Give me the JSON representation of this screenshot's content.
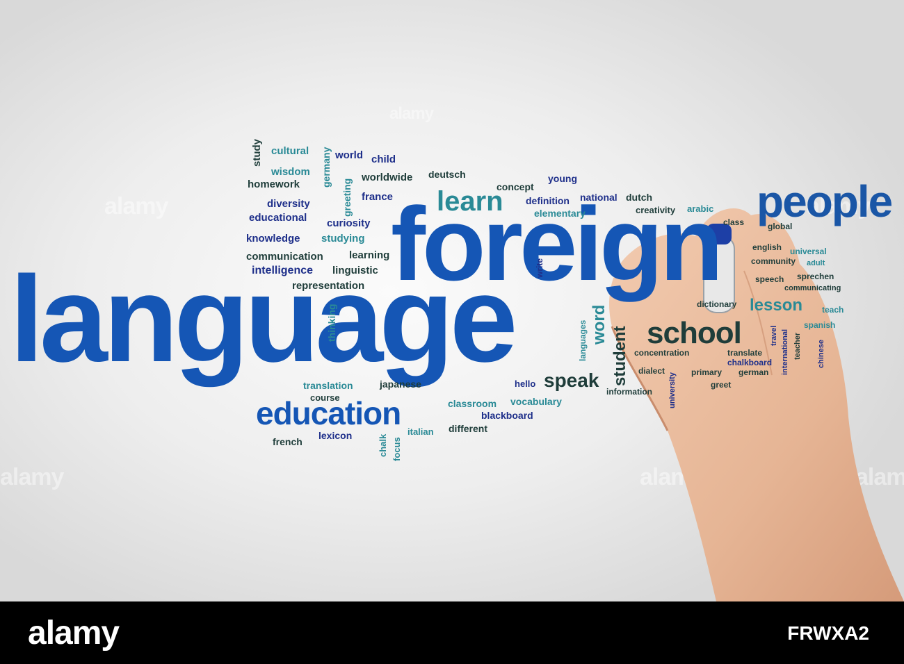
{
  "watermark": "alamy",
  "stock_id": "FRWXA2",
  "colors": {
    "blue": "#1556b5",
    "navy": "#1e2f8a",
    "teal": "#2a8a96",
    "dark": "#1f3d3a"
  },
  "words": {
    "language": "language",
    "foreign": "foreign",
    "people": "people",
    "education": "education",
    "school": "school",
    "learn": "learn",
    "speak": "speak",
    "lesson": "lesson",
    "student": "student",
    "word": "word",
    "study": "study",
    "cultural": "cultural",
    "germany": "germany",
    "world": "world",
    "child": "child",
    "wisdom": "wisdom",
    "homework": "homework",
    "greeting": "greeting",
    "worldwide": "worldwide",
    "deutsch": "deutsch",
    "young": "young",
    "concept": "concept",
    "france": "france",
    "diversity": "diversity",
    "definition": "definition",
    "national": "national",
    "dutch": "dutch",
    "elementary": "elementary",
    "creativity": "creativity",
    "arabic": "arabic",
    "educational": "educational",
    "curiosity": "curiosity",
    "class": "class",
    "global": "global",
    "knowledge": "knowledge",
    "studying": "studying",
    "english": "english",
    "universal": "universal",
    "communication": "communication",
    "learning": "learning",
    "community": "community",
    "adult": "adult",
    "intelligence": "intelligence",
    "linguistic": "linguistic",
    "write": "write",
    "sprechen": "sprechen",
    "speech": "speech",
    "communicating": "communicating",
    "representation": "representation",
    "dictionary": "dictionary",
    "teach": "teach",
    "thinking": "thinking",
    "languages": "languages",
    "spanish": "spanish",
    "travel": "travel",
    "international": "international",
    "teacher": "teacher",
    "chinese": "chinese",
    "concentration": "concentration",
    "translate": "translate",
    "dialect": "dialect",
    "chalkboard": "chalkboard",
    "primary": "primary",
    "german": "german",
    "university": "university",
    "greet": "greet",
    "information": "information",
    "translation": "translation",
    "japanese": "japanese",
    "hello": "hello",
    "course": "course",
    "classroom": "classroom",
    "vocabulary": "vocabulary",
    "blackboard": "blackboard",
    "french": "french",
    "lexicon": "lexicon",
    "chalk": "chalk",
    "focus": "focus",
    "italian": "italian",
    "different": "different"
  }
}
